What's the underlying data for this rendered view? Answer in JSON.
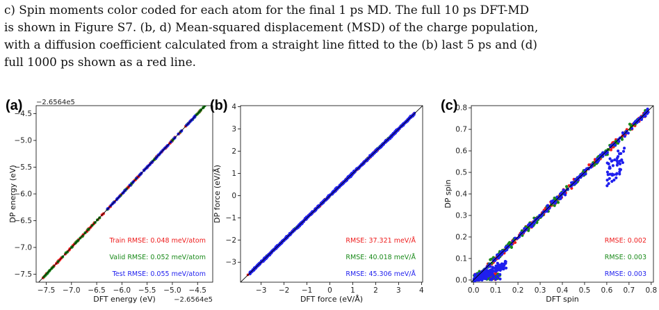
{
  "caption": {
    "lines": [
      "c) Spin moments color coded for each atom for the final 1 ps MD. The full 10 ps DFT-MD",
      "is shown in Figure S7. (b, d) Mean-squared displacement (MSD) of the charge population,",
      "with a diffusion coefficient calculated from a straight line fitted to the (b) last 5 ps and (d)",
      "full 1000 ps shown as a red line."
    ]
  },
  "colors": {
    "train": "#ee1c1c",
    "valid": "#1a8a1a",
    "test": "#1f1fee",
    "diag": "#000000"
  },
  "chart_data": [
    {
      "type": "scatter",
      "panel_label": "(a)",
      "xlabel": "DFT energy (eV)",
      "ylabel": "DP energy (eV)",
      "x_offset_label": "−2.6564e5",
      "y_offset_label": "−2.6564e5",
      "xlim": [
        -7.7,
        -4.2
      ],
      "ylim": [
        -7.65,
        -4.35
      ],
      "xticks": [
        -7.5,
        -7.0,
        -6.5,
        -6.0,
        -5.5,
        -5.0,
        -4.5
      ],
      "xtick_labels": [
        "−7.5",
        "−7.0",
        "−6.5",
        "−6.0",
        "−5.5",
        "−5.0",
        "−4.5"
      ],
      "yticks": [
        -7.5,
        -7.0,
        -6.5,
        -6.0,
        -5.5,
        -5.0,
        -4.5
      ],
      "ytick_labels": [
        "−7.5",
        "−7.0",
        "−6.5",
        "−6.0",
        "−5.5",
        "−5.0",
        "−4.5"
      ],
      "annotations": [
        "Train RMSE: 0.048 meV/atom",
        "Valid RMSE: 0.052 meV/atom",
        "Test RMSE: 0.055 meV/atom"
      ],
      "series": [
        {
          "color_key": "train",
          "range": [
            -7.58,
            -4.38
          ],
          "count": 140,
          "spread": 0.015
        },
        {
          "color_key": "valid",
          "range": [
            -7.55,
            -4.32
          ],
          "count": 80,
          "spread": 0.015
        },
        {
          "color_key": "test",
          "range": [
            -6.3,
            -4.5
          ],
          "count": 70,
          "spread": 0.012
        }
      ]
    },
    {
      "type": "scatter",
      "panel_label": "(b)",
      "xlabel": "DFT force (eV/Å)",
      "ylabel": "DP force (eV/Å)",
      "xlim": [
        -3.9,
        4.05
      ],
      "ylim": [
        -3.9,
        4.05
      ],
      "xticks": [
        -3,
        -2,
        -1,
        0,
        1,
        2,
        3,
        4
      ],
      "xtick_labels": [
        "−3",
        "−2",
        "−1",
        "0",
        "1",
        "2",
        "3",
        "4"
      ],
      "yticks": [
        -3,
        -2,
        -1,
        0,
        1,
        2,
        3,
        4
      ],
      "ytick_labels": [
        "−3",
        "−2",
        "−1",
        "0",
        "1",
        "2",
        "3",
        "4"
      ],
      "annotations": [
        "RMSE: 37.321 meV/Å",
        "RMSE: 40.018 meV/Å",
        "RMSE: 45.306 meV/Å"
      ],
      "series": [
        {
          "color_key": "train",
          "range": [
            -3.6,
            3.7
          ],
          "count": 260,
          "spread": 0.06
        },
        {
          "color_key": "valid",
          "range": [
            -3.3,
            3.5
          ],
          "count": 200,
          "spread": 0.06
        },
        {
          "color_key": "test",
          "range": [
            -3.5,
            3.7
          ],
          "count": 900,
          "spread": 0.08
        }
      ]
    },
    {
      "type": "scatter",
      "panel_label": "(c)",
      "xlabel": "DFT spin",
      "ylabel": "DP spin",
      "xlim": [
        -0.01,
        0.81
      ],
      "ylim": [
        -0.01,
        0.81
      ],
      "xticks": [
        0.0,
        0.1,
        0.2,
        0.3,
        0.4,
        0.5,
        0.6,
        0.7,
        0.8
      ],
      "xtick_labels": [
        "0.0",
        "0.1",
        "0.2",
        "0.3",
        "0.4",
        "0.5",
        "0.6",
        "0.7",
        "0.8"
      ],
      "yticks": [
        0.0,
        0.1,
        0.2,
        0.3,
        0.4,
        0.5,
        0.6,
        0.7,
        0.8
      ],
      "ytick_labels": [
        "0.0",
        "0.1",
        "0.2",
        "0.3",
        "0.4",
        "0.5",
        "0.6",
        "0.7",
        "0.8"
      ],
      "annotations": [
        "RMSE: 0.002",
        "RMSE: 0.003",
        "RMSE: 0.003"
      ],
      "series": [
        {
          "color_key": "train",
          "range": [
            0.0,
            0.79
          ],
          "count": 220,
          "spread": 0.02
        },
        {
          "color_key": "valid",
          "range": [
            0.0,
            0.78
          ],
          "count": 200,
          "spread": 0.025
        },
        {
          "color_key": "test",
          "range": [
            0.0,
            0.79
          ],
          "count": 420,
          "spread": 0.02
        }
      ]
    }
  ]
}
